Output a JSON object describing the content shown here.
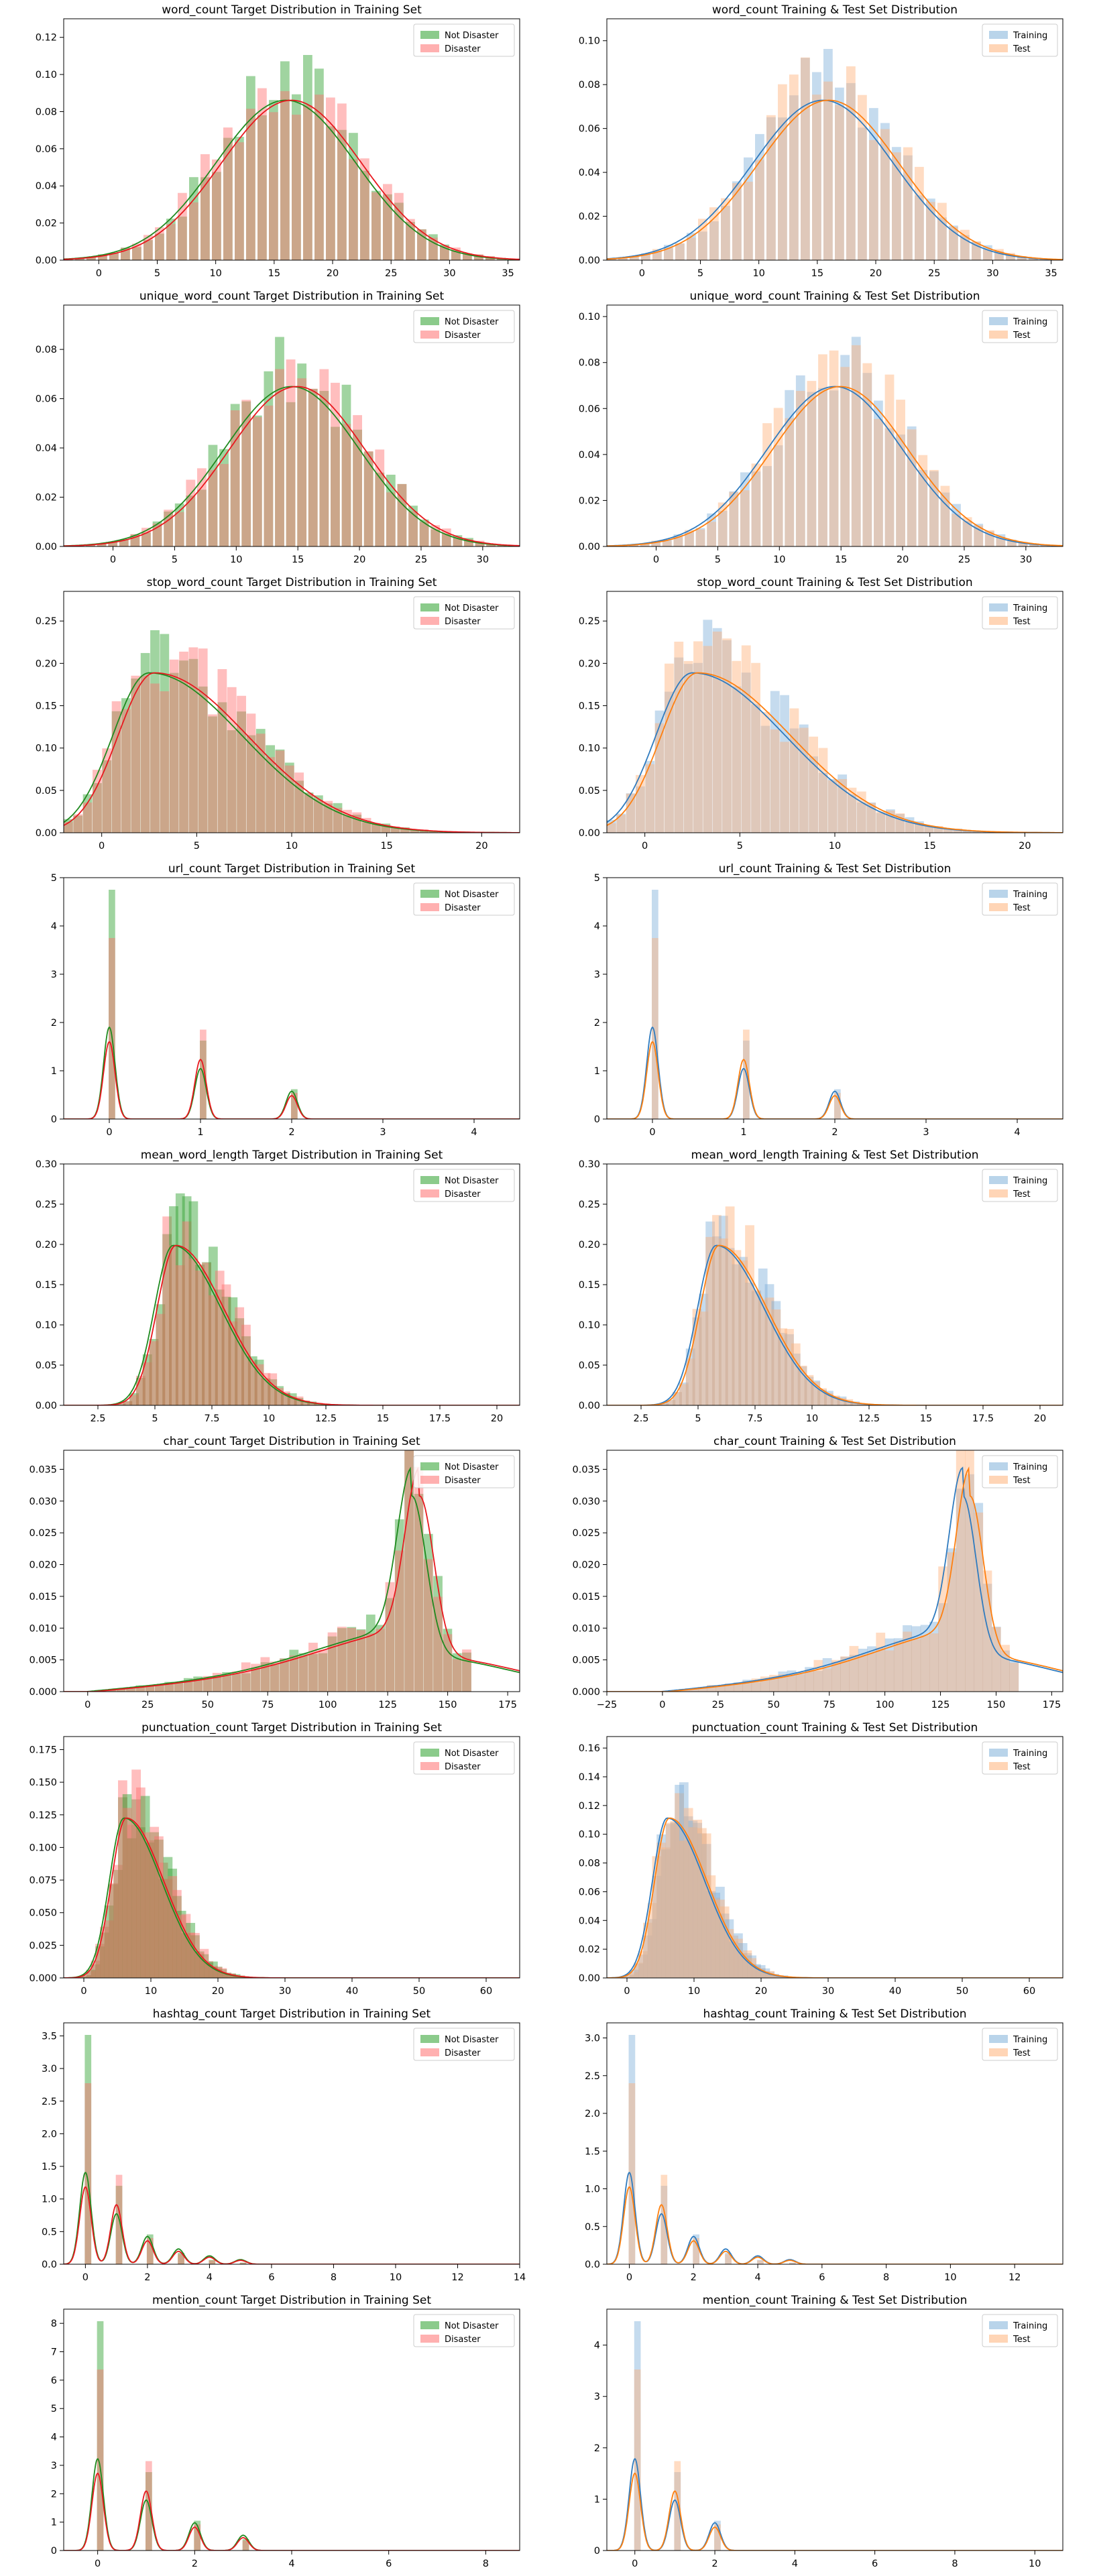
{
  "palette": {
    "not_disaster": "#2ca02c",
    "disaster": "#ff6f6f",
    "training": "#7fb0d9",
    "test": "#ffb27a",
    "kde_not_disaster": "#1f8a1f",
    "kde_disaster": "#e8181e",
    "kde_training": "#2f7bbf",
    "kde_test": "#ff7f0e"
  },
  "chart_data": [
    {
      "type": "bar",
      "title": "word_count Target Distribution in Training Set",
      "legend": "top-right",
      "xlim": [
        -3,
        36
      ],
      "ylim": [
        0,
        0.13
      ],
      "xticks": [
        0,
        5,
        10,
        15,
        20,
        25,
        30,
        35
      ],
      "yticks": [
        0,
        0.02,
        0.04,
        0.06,
        0.08,
        0.1,
        0.12
      ],
      "yfmt": 2,
      "kind": "target",
      "center": 16,
      "spread": 6,
      "series": [
        {
          "name": "Not Disaster"
        },
        {
          "name": "Disaster"
        }
      ]
    },
    {
      "type": "bar",
      "title": "word_count Training & Test Set Distribution",
      "legend": "top-right",
      "xlim": [
        -3,
        36
      ],
      "ylim": [
        0,
        0.11
      ],
      "xticks": [
        0,
        5,
        10,
        15,
        20,
        25,
        30,
        35
      ],
      "yticks": [
        0,
        0.02,
        0.04,
        0.06,
        0.08,
        0.1
      ],
      "yfmt": 2,
      "kind": "split",
      "center": 15.5,
      "spread": 6,
      "series": [
        {
          "name": "Training"
        },
        {
          "name": "Test"
        }
      ]
    },
    {
      "type": "bar",
      "title": "unique_word_count Target Distribution in Training Set",
      "legend": "top-right",
      "xlim": [
        -4,
        33
      ],
      "ylim": [
        0,
        0.098
      ],
      "xticks": [
        0,
        5,
        10,
        15,
        20,
        25,
        30
      ],
      "yticks": [
        0,
        0.02,
        0.04,
        0.06,
        0.08
      ],
      "yfmt": 2,
      "kind": "target",
      "center": 14.5,
      "spread": 5.5,
      "series": [
        {
          "name": "Not Disaster"
        },
        {
          "name": "Disaster"
        }
      ]
    },
    {
      "type": "bar",
      "title": "unique_word_count Training & Test Set Distribution",
      "legend": "top-right",
      "xlim": [
        -4,
        33
      ],
      "ylim": [
        0,
        0.105
      ],
      "xticks": [
        0,
        5,
        10,
        15,
        20,
        25,
        30
      ],
      "yticks": [
        0,
        0.02,
        0.04,
        0.06,
        0.08,
        0.1
      ],
      "yfmt": 2,
      "kind": "split",
      "center": 14.5,
      "spread": 5.5,
      "series": [
        {
          "name": "Training"
        },
        {
          "name": "Test"
        }
      ]
    },
    {
      "type": "bar",
      "title": "stop_word_count Target Distribution in Training Set",
      "legend": "top-right",
      "xlim": [
        -2,
        22
      ],
      "ylim": [
        0,
        0.285
      ],
      "xticks": [
        0,
        5,
        10,
        15,
        20
      ],
      "yticks": [
        0,
        0.05,
        0.1,
        0.15,
        0.2,
        0.25
      ],
      "yfmt": 2,
      "kind": "target",
      "center": 2.5,
      "spread": 3.5,
      "skew": true,
      "series": [
        {
          "name": "Not Disaster"
        },
        {
          "name": "Disaster"
        }
      ]
    },
    {
      "type": "bar",
      "title": "stop_word_count Training & Test Set Distribution",
      "legend": "top-right",
      "xlim": [
        -2,
        22
      ],
      "ylim": [
        0,
        0.285
      ],
      "xticks": [
        0,
        5,
        10,
        15,
        20
      ],
      "yticks": [
        0,
        0.05,
        0.1,
        0.15,
        0.2,
        0.25
      ],
      "yfmt": 2,
      "kind": "split",
      "center": 2.5,
      "spread": 3.5,
      "skew": true,
      "series": [
        {
          "name": "Training"
        },
        {
          "name": "Test"
        }
      ]
    },
    {
      "type": "bar",
      "title": "url_count Target Distribution in Training Set",
      "legend": "top-right",
      "xlim": [
        -0.5,
        4.5
      ],
      "ylim": [
        0,
        5
      ],
      "xticks": [
        0,
        1,
        2,
        3,
        4
      ],
      "yticks": [
        0,
        1,
        2,
        3,
        4,
        5
      ],
      "yfmt": 0,
      "kind": "spikes",
      "peaks": [
        0,
        1,
        2
      ],
      "series": [
        {
          "name": "Not Disaster"
        },
        {
          "name": "Disaster"
        }
      ]
    },
    {
      "type": "bar",
      "title": "url_count Training & Test Set Distribution",
      "legend": "top-right",
      "xlim": [
        -0.5,
        4.5
      ],
      "ylim": [
        0,
        5
      ],
      "xticks": [
        0,
        1,
        2,
        3,
        4
      ],
      "yticks": [
        0,
        1,
        2,
        3,
        4,
        5
      ],
      "yfmt": 0,
      "kind": "spikes",
      "peaks": [
        0,
        1,
        2
      ],
      "series": [
        {
          "name": "Training"
        },
        {
          "name": "Test"
        }
      ]
    },
    {
      "type": "bar",
      "title": "mean_word_length Target Distribution in Training Set",
      "legend": "top-right",
      "xlim": [
        1,
        21
      ],
      "ylim": [
        0,
        0.3
      ],
      "xticks": [
        2.5,
        5.0,
        7.5,
        10.0,
        12.5,
        15.0,
        17.5,
        20.0
      ],
      "yticks": [
        0,
        0.05,
        0.1,
        0.15,
        0.2,
        0.25,
        0.3
      ],
      "yfmt": 2,
      "kind": "target",
      "center": 5.8,
      "spread": 1.5,
      "skew": true,
      "series": [
        {
          "name": "Not Disaster"
        },
        {
          "name": "Disaster"
        }
      ]
    },
    {
      "type": "bar",
      "title": "mean_word_length Training & Test Set Distribution",
      "legend": "top-right",
      "xlim": [
        1,
        21
      ],
      "ylim": [
        0,
        0.3
      ],
      "xticks": [
        2.5,
        5.0,
        7.5,
        10.0,
        12.5,
        15.0,
        17.5,
        20.0
      ],
      "yticks": [
        0,
        0.05,
        0.1,
        0.15,
        0.2,
        0.25,
        0.3
      ],
      "yfmt": 2,
      "kind": "split",
      "center": 5.8,
      "spread": 1.5,
      "skew": true,
      "series": [
        {
          "name": "Training"
        },
        {
          "name": "Test"
        }
      ]
    },
    {
      "type": "bar",
      "title": "char_count Target Distribution in Training Set",
      "legend": "top-right",
      "xlim": [
        -10,
        180
      ],
      "ylim": [
        0,
        0.038
      ],
      "xticks": [
        0,
        25,
        50,
        75,
        100,
        125,
        150,
        175
      ],
      "yticks": [
        0,
        0.005,
        0.01,
        0.015,
        0.02,
        0.025,
        0.03,
        0.035
      ],
      "yfmt": 3,
      "kind": "left-skew",
      "center": 135,
      "spread": 40,
      "series": [
        {
          "name": "Not Disaster"
        },
        {
          "name": "Disaster"
        }
      ]
    },
    {
      "type": "bar",
      "title": "char_count Training & Test Set Distribution",
      "legend": "top-right",
      "xlim": [
        -25,
        180
      ],
      "ylim": [
        0,
        0.038
      ],
      "xticks": [
        -25,
        0,
        25,
        50,
        75,
        100,
        125,
        150,
        175
      ],
      "yticks": [
        0,
        0.005,
        0.01,
        0.015,
        0.02,
        0.025,
        0.03,
        0.035
      ],
      "yfmt": 3,
      "kind": "left-skew",
      "center": 135,
      "spread": 40,
      "series": [
        {
          "name": "Training"
        },
        {
          "name": "Test"
        }
      ]
    },
    {
      "type": "bar",
      "title": "punctuation_count Target Distribution in Training Set",
      "legend": "top-right",
      "xlim": [
        -3,
        65
      ],
      "ylim": [
        0,
        0.185
      ],
      "xticks": [
        0,
        10,
        20,
        30,
        40,
        50,
        60
      ],
      "yticks": [
        0,
        0.025,
        0.05,
        0.075,
        0.1,
        0.125,
        0.15,
        0.175
      ],
      "yfmt": 3,
      "kind": "target",
      "center": 6,
      "spread": 4,
      "skew": true,
      "series": [
        {
          "name": "Not Disaster"
        },
        {
          "name": "Disaster"
        }
      ]
    },
    {
      "type": "bar",
      "title": "punctuation_count Training & Test Set Distribution",
      "legend": "top-right",
      "xlim": [
        -3,
        65
      ],
      "ylim": [
        0,
        0.168
      ],
      "xticks": [
        0,
        10,
        20,
        30,
        40,
        50,
        60
      ],
      "yticks": [
        0,
        0.02,
        0.04,
        0.06,
        0.08,
        0.1,
        0.12,
        0.14,
        0.16
      ],
      "yfmt": 2,
      "kind": "split",
      "center": 6,
      "spread": 4,
      "skew": true,
      "series": [
        {
          "name": "Training"
        },
        {
          "name": "Test"
        }
      ]
    },
    {
      "type": "bar",
      "title": "hashtag_count Target Distribution in Training Set",
      "legend": "top-right",
      "xlim": [
        -0.7,
        14
      ],
      "ylim": [
        0,
        3.7
      ],
      "xticks": [
        0,
        2,
        4,
        6,
        8,
        10,
        12,
        14
      ],
      "yticks": [
        0,
        0.5,
        1.0,
        1.5,
        2.0,
        2.5,
        3.0,
        3.5
      ],
      "yfmt": 1,
      "kind": "spikes",
      "peaks": [
        0,
        1,
        2,
        3,
        4,
        5
      ],
      "series": [
        {
          "name": "Not Disaster"
        },
        {
          "name": "Disaster"
        }
      ]
    },
    {
      "type": "bar",
      "title": "hashtag_count Training & Test Set Distribution",
      "legend": "top-right",
      "xlim": [
        -0.7,
        13.5
      ],
      "ylim": [
        0,
        3.2
      ],
      "xticks": [
        0,
        2,
        4,
        6,
        8,
        10,
        12
      ],
      "yticks": [
        0,
        0.5,
        1.0,
        1.5,
        2.0,
        2.5,
        3.0
      ],
      "yfmt": 1,
      "kind": "spikes",
      "peaks": [
        0,
        1,
        2,
        3,
        4,
        5
      ],
      "series": [
        {
          "name": "Training"
        },
        {
          "name": "Test"
        }
      ]
    },
    {
      "type": "bar",
      "title": "mention_count Target Distribution in Training Set",
      "legend": "top-right",
      "xlim": [
        -0.7,
        8.7
      ],
      "ylim": [
        0,
        8.5
      ],
      "xticks": [
        0,
        2,
        4,
        6,
        8
      ],
      "yticks": [
        0,
        1,
        2,
        3,
        4,
        5,
        6,
        7,
        8
      ],
      "yfmt": 0,
      "kind": "spikes",
      "peaks": [
        0,
        1,
        2,
        3
      ],
      "series": [
        {
          "name": "Not Disaster"
        },
        {
          "name": "Disaster"
        }
      ]
    },
    {
      "type": "bar",
      "title": "mention_count Training & Test Set Distribution",
      "legend": "top-right",
      "xlim": [
        -0.7,
        10.7
      ],
      "ylim": [
        0,
        4.7
      ],
      "xticks": [
        0,
        2,
        4,
        6,
        8,
        10
      ],
      "yticks": [
        0,
        1,
        2,
        3,
        4
      ],
      "yfmt": 0,
      "kind": "spikes",
      "peaks": [
        0,
        1,
        2
      ],
      "series": [
        {
          "name": "Training"
        },
        {
          "name": "Test"
        }
      ]
    }
  ]
}
